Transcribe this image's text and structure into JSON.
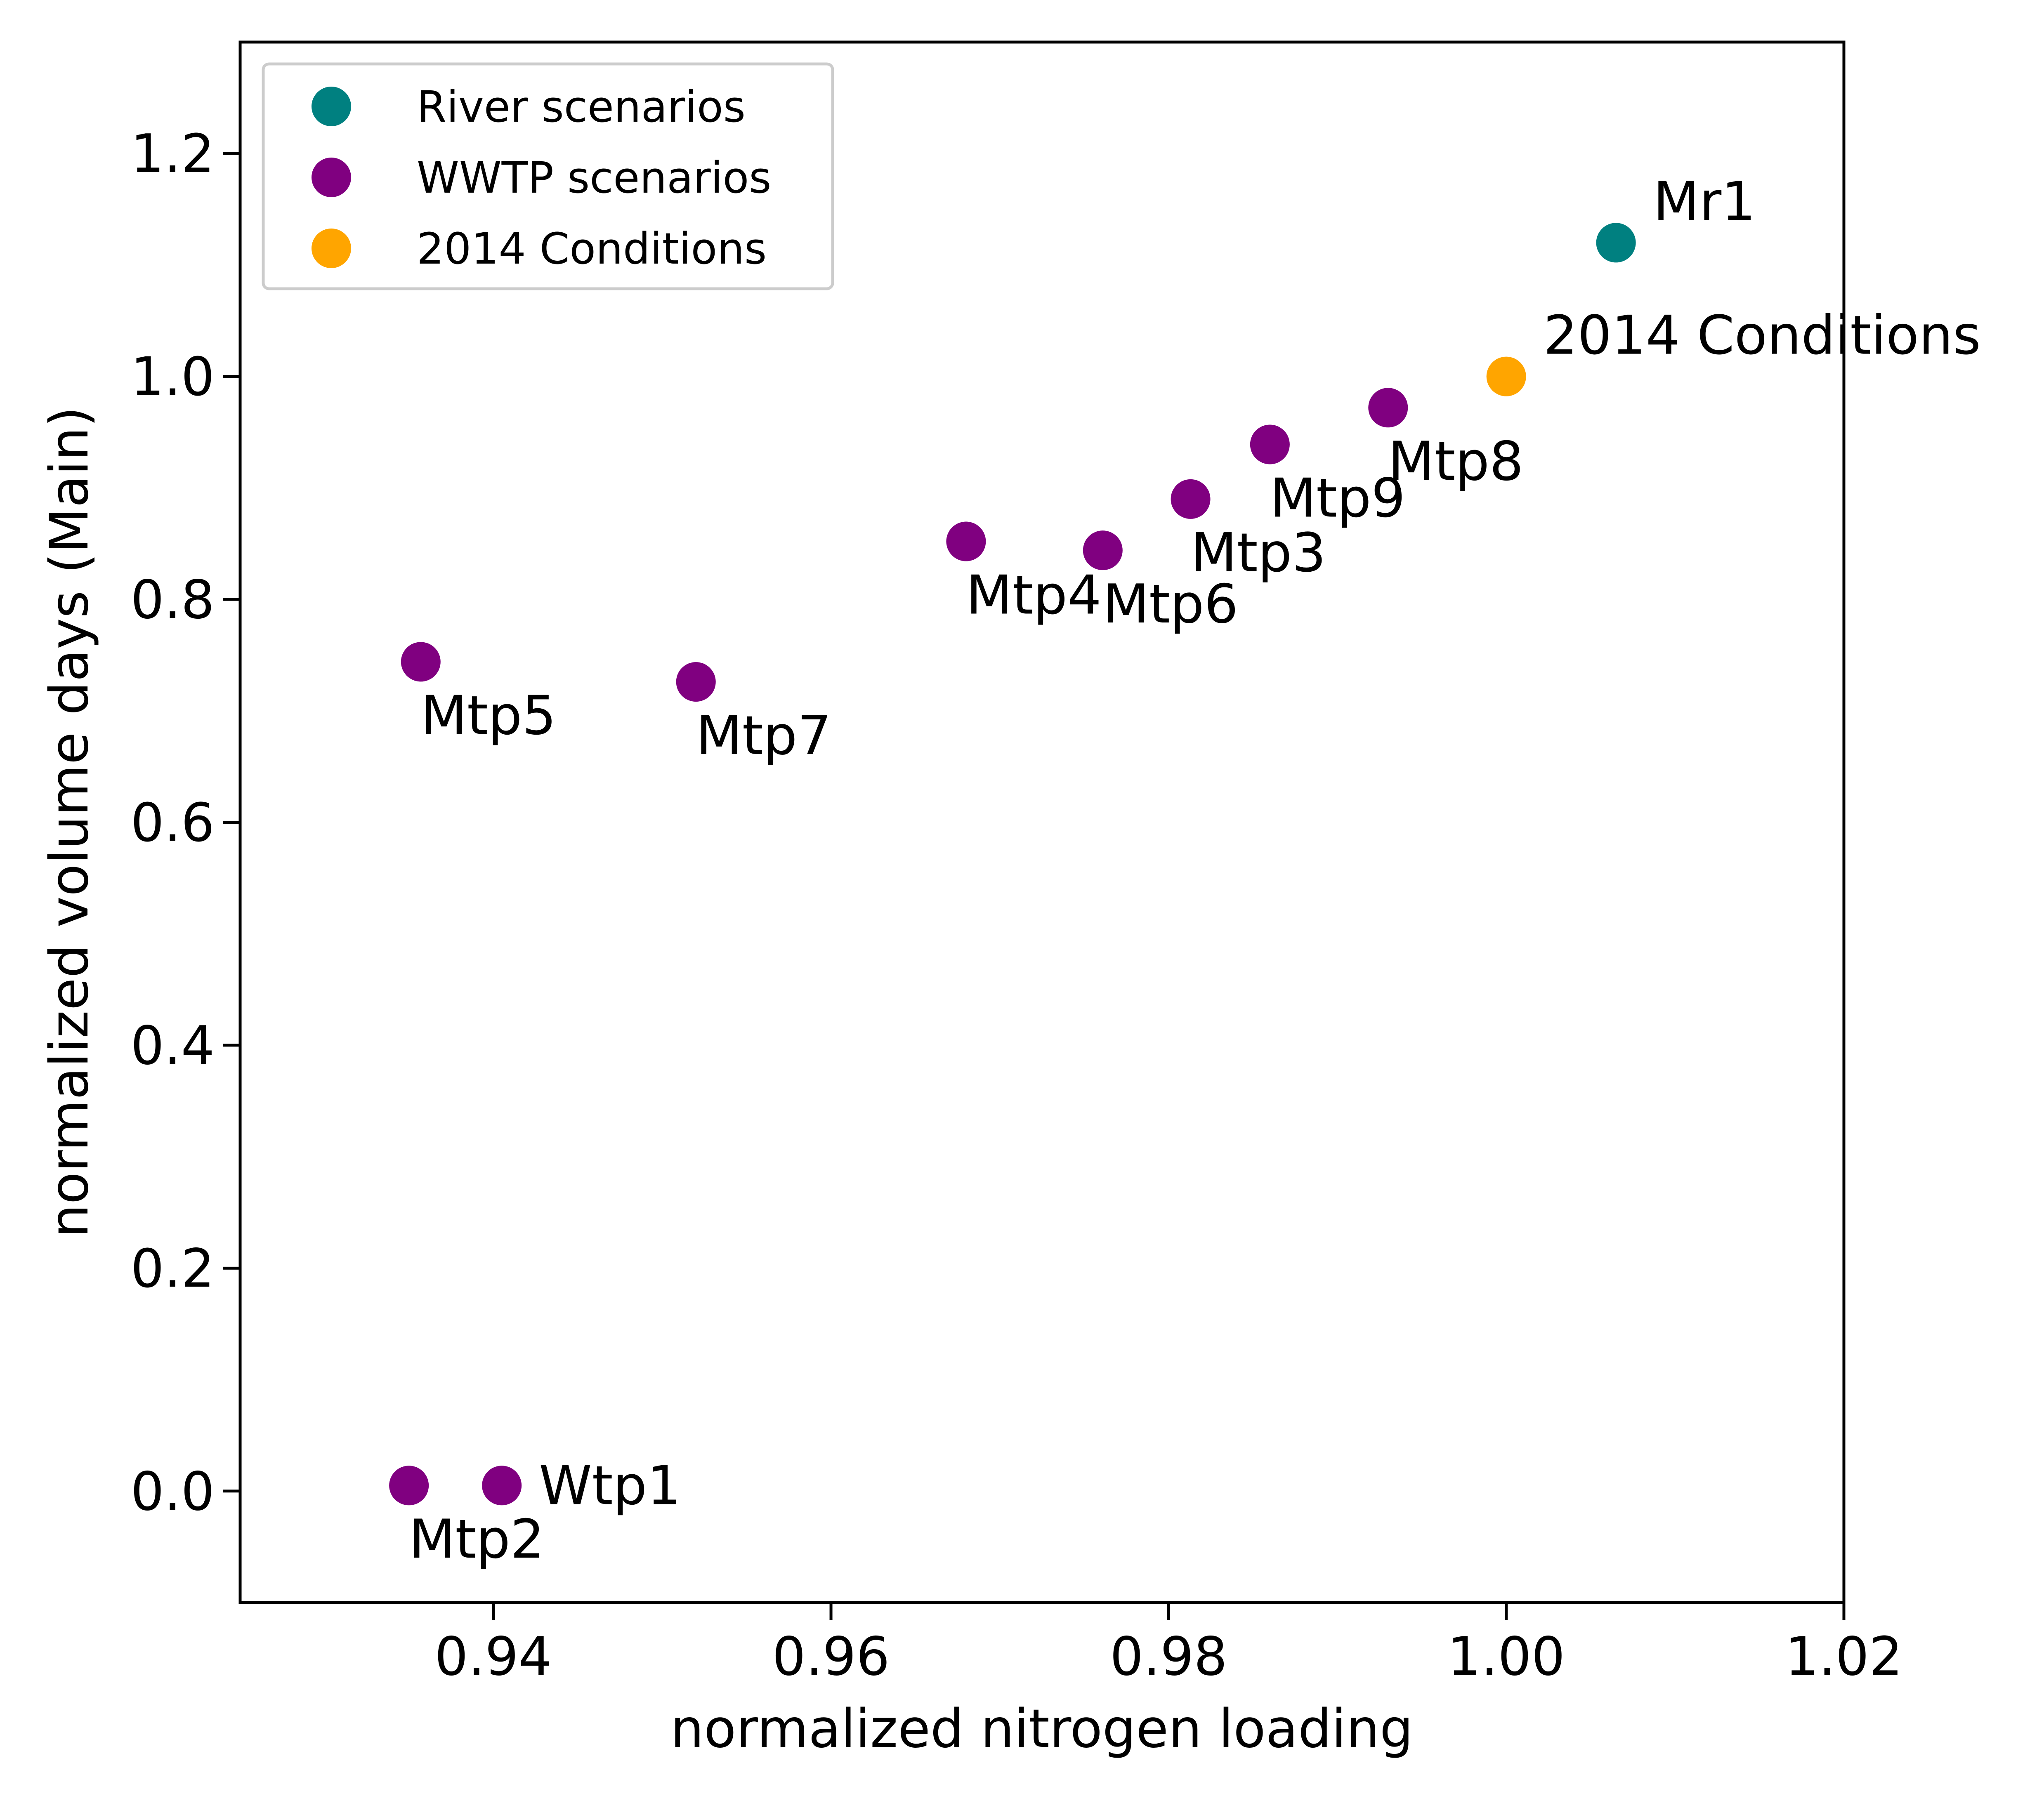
{
  "chart_data": {
    "type": "scatter",
    "title": "",
    "xlabel": "normalized nitrogen loading",
    "ylabel": "normalized volume days (Main)",
    "xlim": [
      0.925,
      1.02
    ],
    "ylim": [
      -0.1,
      1.3
    ],
    "xticks": [
      0.94,
      0.96,
      0.98,
      1.0,
      1.02
    ],
    "xtick_labels": [
      "0.94",
      "0.96",
      "0.98",
      "1.00",
      "1.02"
    ],
    "yticks": [
      0.0,
      0.2,
      0.4,
      0.6,
      0.8,
      1.0,
      1.2
    ],
    "ytick_labels": [
      "0.0",
      "0.2",
      "0.4",
      "0.6",
      "0.8",
      "1.0",
      "1.2"
    ],
    "grid": false,
    "legend_position": "top-left",
    "series": [
      {
        "name": "River scenarios",
        "color": "#008080",
        "points": [
          {
            "label": "Mr1",
            "x": 1.0065,
            "y": 1.12,
            "label_pos": "upper-right"
          }
        ]
      },
      {
        "name": "WWTP scenarios",
        "color": "#800080",
        "points": [
          {
            "label": "Wtp1",
            "x": 0.9405,
            "y": 0.005,
            "label_pos": "right"
          },
          {
            "label": "Mtp2",
            "x": 0.935,
            "y": 0.005,
            "label_pos": "below"
          },
          {
            "label": "Mtp3",
            "x": 0.9813,
            "y": 0.89,
            "label_pos": "below"
          },
          {
            "label": "Mtp4",
            "x": 0.968,
            "y": 0.852,
            "label_pos": "below"
          },
          {
            "label": "Mtp5",
            "x": 0.9357,
            "y": 0.744,
            "label_pos": "below"
          },
          {
            "label": "Mtp6",
            "x": 0.9761,
            "y": 0.844,
            "label_pos": "below"
          },
          {
            "label": "Mtp7",
            "x": 0.952,
            "y": 0.726,
            "label_pos": "below"
          },
          {
            "label": "Mtp8",
            "x": 0.993,
            "y": 0.972,
            "label_pos": "below"
          },
          {
            "label": "Mtp9",
            "x": 0.986,
            "y": 0.939,
            "label_pos": "below"
          }
        ]
      },
      {
        "name": "2014 Conditions",
        "color": "#FFA500",
        "points": [
          {
            "label": "2014 Conditions",
            "x": 1.0,
            "y": 1.0,
            "label_pos": "upper-right"
          }
        ]
      }
    ]
  }
}
